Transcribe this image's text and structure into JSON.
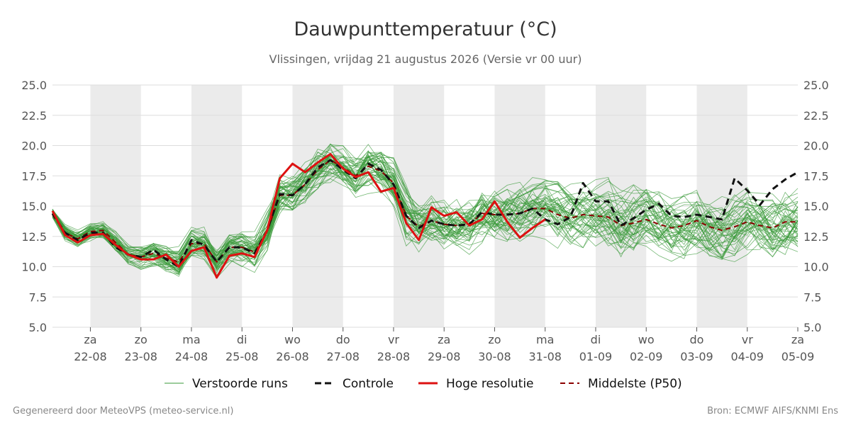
{
  "title": "Dauwpunttemperatuur (°C)",
  "subtitle": "Vlissingen, vrijdag 21 augustus 2026 (Versie vr 00 uur)",
  "footer": {
    "left": "Gegenereerd door MeteoVPS (meteo-service.nl)",
    "right": "Bron: ECMWF AIFS/KNMI Ens"
  },
  "colors": {
    "ensemble": "#3a9a3a",
    "control": "#111111",
    "high_res": "#dd1111",
    "median": "#8b0000",
    "weekend_band": "#ebebeb",
    "grid": "#dddddd"
  },
  "legend": [
    {
      "key": "ensemble",
      "label": "Verstoorde runs",
      "style": "thin-solid"
    },
    {
      "key": "control",
      "label": "Controle",
      "style": "dashed"
    },
    {
      "key": "high_res",
      "label": "Hoge resolutie",
      "style": "thick-solid"
    },
    {
      "key": "median",
      "label": "Middelste (P50)",
      "style": "dashed"
    }
  ],
  "chart_data": {
    "type": "line",
    "title": "Dauwpunttemperatuur (°C)",
    "subtitle": "Vlissingen, vrijdag 21 augustus 2026 (Versie vr 00 uur)",
    "x_unit": "days",
    "xlim": [
      -0.75,
      14.0
    ],
    "ylim": [
      5.0,
      25.0
    ],
    "y_ticks": [
      5.0,
      7.5,
      10.0,
      12.5,
      15.0,
      17.5,
      20.0,
      22.5,
      25.0
    ],
    "y_tick_labels": [
      "5.0",
      "7.5",
      "10.0",
      "12.5",
      "15.0",
      "17.5",
      "20.0",
      "22.5",
      "25.0"
    ],
    "y_axis_both_sides": true,
    "grid": true,
    "legend_position": "bottom-center",
    "x_ticks": [
      {
        "x": 0,
        "day": "za",
        "date": "22-08"
      },
      {
        "x": 1,
        "day": "zo",
        "date": "23-08"
      },
      {
        "x": 2,
        "day": "ma",
        "date": "24-08"
      },
      {
        "x": 3,
        "day": "di",
        "date": "25-08"
      },
      {
        "x": 4,
        "day": "wo",
        "date": "26-08"
      },
      {
        "x": 5,
        "day": "do",
        "date": "27-08"
      },
      {
        "x": 6,
        "day": "vr",
        "date": "28-08"
      },
      {
        "x": 7,
        "day": "za",
        "date": "29-08"
      },
      {
        "x": 8,
        "day": "zo",
        "date": "30-08"
      },
      {
        "x": 9,
        "day": "ma",
        "date": "31-08"
      },
      {
        "x": 10,
        "day": "di",
        "date": "01-09"
      },
      {
        "x": 11,
        "day": "wo",
        "date": "02-09"
      },
      {
        "x": 12,
        "day": "do",
        "date": "03-09"
      },
      {
        "x": 13,
        "day": "vr",
        "date": "04-09"
      },
      {
        "x": 14,
        "day": "za",
        "date": "05-09"
      }
    ],
    "shaded_bands": [
      [
        0,
        1
      ],
      [
        2,
        3
      ],
      [
        4,
        5
      ],
      [
        6,
        7
      ],
      [
        8,
        9
      ],
      [
        10,
        11
      ],
      [
        12,
        13
      ]
    ],
    "series": [
      {
        "name": "Controle",
        "key": "control",
        "x": [
          -0.75,
          -0.5,
          -0.25,
          0.0,
          0.25,
          0.5,
          0.75,
          1.0,
          1.25,
          1.5,
          1.75,
          2.0,
          2.25,
          2.5,
          2.75,
          3.0,
          3.25,
          3.5,
          3.75,
          4.0,
          4.25,
          4.5,
          4.75,
          5.0,
          5.25,
          5.5,
          5.75,
          6.0,
          6.25,
          6.5,
          6.75,
          7.0,
          7.25,
          7.5,
          7.75,
          8.0,
          8.25,
          8.5,
          8.75,
          9.0,
          9.25,
          9.5,
          9.75,
          10.0,
          10.25,
          10.5,
          10.75,
          11.0,
          11.25,
          11.5,
          11.75,
          12.0,
          12.25,
          12.5,
          12.75,
          13.0,
          13.25,
          13.5,
          13.75,
          14.0
        ],
        "y": [
          14.4,
          12.8,
          12.2,
          12.8,
          12.8,
          11.6,
          11.0,
          10.8,
          11.4,
          10.6,
          10.0,
          12.2,
          11.8,
          10.4,
          11.6,
          11.6,
          11.1,
          13.0,
          16.0,
          15.9,
          16.8,
          18.2,
          18.8,
          18.0,
          17.3,
          18.5,
          18.0,
          16.8,
          14.2,
          13.2,
          13.8,
          13.5,
          13.4,
          13.5,
          14.5,
          14.3,
          14.3,
          14.4,
          14.8,
          13.9,
          13.5,
          14.1,
          16.9,
          15.4,
          15.4,
          13.4,
          14.0,
          14.7,
          15.2,
          14.2,
          14.1,
          14.3,
          14.1,
          13.9,
          17.3,
          16.3,
          15.1,
          16.4,
          17.2,
          17.8
        ]
      },
      {
        "name": "Hoge resolutie",
        "key": "high_res",
        "x": [
          -0.75,
          -0.5,
          -0.25,
          0.0,
          0.25,
          0.5,
          0.75,
          1.0,
          1.25,
          1.5,
          1.75,
          2.0,
          2.25,
          2.5,
          2.75,
          3.0,
          3.25,
          3.5,
          3.75,
          4.0,
          4.25,
          4.5,
          4.75,
          5.0,
          5.25,
          5.5,
          5.75,
          6.0,
          6.25,
          6.5,
          6.75,
          7.0,
          7.25,
          7.5,
          7.75,
          8.0,
          8.25,
          8.5,
          8.75,
          9.0
        ],
        "y": [
          14.6,
          12.6,
          12.0,
          12.6,
          12.7,
          11.8,
          11.0,
          10.6,
          10.6,
          11.0,
          10.0,
          11.3,
          11.6,
          9.1,
          10.9,
          11.1,
          10.8,
          13.0,
          17.3,
          18.5,
          17.8,
          18.6,
          19.3,
          18.1,
          17.4,
          17.8,
          16.2,
          16.5,
          13.6,
          12.2,
          14.9,
          14.2,
          14.5,
          13.4,
          13.9,
          15.4,
          13.7,
          12.4,
          13.2,
          13.9
        ]
      },
      {
        "name": "Middelste (P50)",
        "key": "median",
        "x": [
          -0.75,
          -0.5,
          -0.25,
          0.0,
          0.25,
          0.5,
          0.75,
          1.0,
          1.25,
          1.5,
          1.75,
          2.0,
          2.25,
          2.5,
          2.75,
          3.0,
          3.25,
          3.5,
          3.75,
          4.0,
          4.25,
          4.5,
          4.75,
          5.0,
          5.25,
          5.5,
          5.75,
          6.0,
          6.25,
          6.5,
          6.75,
          7.0,
          7.25,
          7.5,
          7.75,
          8.0,
          8.25,
          8.5,
          8.75,
          9.0,
          9.25,
          9.5,
          9.75,
          10.0,
          10.25,
          10.5,
          10.75,
          11.0,
          11.25,
          11.5,
          11.75,
          12.0,
          12.25,
          12.5,
          12.75,
          13.0,
          13.25,
          13.5,
          13.75,
          14.0
        ],
        "y": [
          14.3,
          12.8,
          12.3,
          12.9,
          13.0,
          12.0,
          11.0,
          10.8,
          11.1,
          10.7,
          10.4,
          11.9,
          11.9,
          10.4,
          11.6,
          11.6,
          11.2,
          12.9,
          15.9,
          15.9,
          16.8,
          18.0,
          18.8,
          18.2,
          17.5,
          18.3,
          17.9,
          16.9,
          14.2,
          13.3,
          13.8,
          13.5,
          13.4,
          13.5,
          14.4,
          14.3,
          14.3,
          14.4,
          14.8,
          14.8,
          14.3,
          14.0,
          14.3,
          14.2,
          14.1,
          13.4,
          13.6,
          13.9,
          13.5,
          13.2,
          13.4,
          13.8,
          13.3,
          13.0,
          13.3,
          13.7,
          13.4,
          13.2,
          13.7,
          13.7
        ]
      }
    ],
    "ensemble": {
      "name": "Verstoorde runs",
      "members": 50,
      "x_start": -0.75,
      "x_step": 0.25,
      "mean": [
        14.4,
        12.8,
        12.3,
        12.9,
        13.0,
        12.0,
        11.0,
        10.8,
        11.1,
        10.7,
        10.4,
        11.9,
        11.9,
        10.4,
        11.6,
        11.6,
        11.2,
        12.9,
        15.9,
        15.9,
        16.8,
        18.0,
        18.8,
        18.2,
        17.5,
        18.3,
        17.9,
        16.9,
        14.2,
        13.3,
        13.8,
        13.5,
        13.4,
        13.5,
        14.4,
        14.3,
        14.3,
        14.4,
        14.8,
        14.8,
        14.3,
        14.0,
        14.3,
        14.2,
        14.1,
        13.4,
        13.6,
        13.9,
        13.5,
        13.2,
        13.4,
        13.8,
        13.3,
        13.0,
        13.3,
        13.7,
        13.4,
        13.2,
        13.7,
        13.7
      ],
      "spread": [
        0.4,
        0.6,
        0.6,
        0.6,
        0.6,
        0.7,
        0.7,
        0.8,
        0.9,
        0.9,
        1.0,
        1.0,
        1.1,
        1.1,
        1.1,
        1.2,
        1.2,
        1.3,
        1.4,
        1.5,
        1.6,
        1.6,
        1.6,
        1.6,
        1.6,
        1.6,
        1.7,
        1.8,
        1.8,
        1.8,
        1.8,
        1.9,
        1.9,
        2.0,
        2.0,
        2.0,
        2.1,
        2.1,
        2.1,
        2.1,
        2.2,
        2.2,
        2.2,
        2.2,
        2.2,
        2.3,
        2.3,
        2.3,
        2.3,
        2.3,
        2.3,
        2.4,
        2.4,
        2.4,
        2.4,
        2.4,
        2.4,
        2.4,
        2.4,
        2.4
      ]
    }
  }
}
